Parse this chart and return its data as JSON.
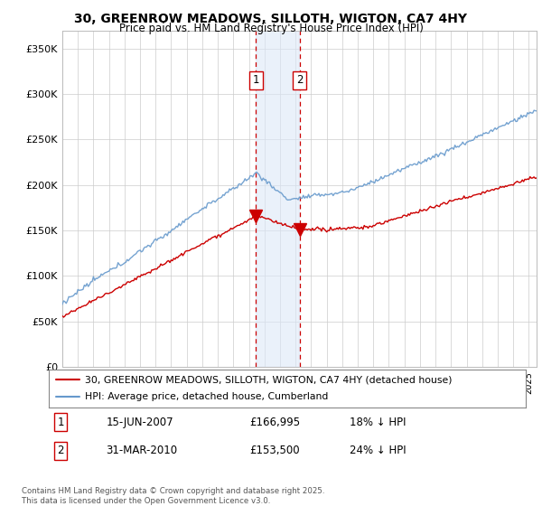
{
  "title_line1": "30, GREENROW MEADOWS, SILLOTH, WIGTON, CA7 4HY",
  "title_line2": "Price paid vs. HM Land Registry's House Price Index (HPI)",
  "yticks_labels": [
    "£0",
    "£50K",
    "£100K",
    "£150K",
    "£200K",
    "£250K",
    "£300K",
    "£350K"
  ],
  "yticks_values": [
    0,
    50000,
    100000,
    150000,
    200000,
    250000,
    300000,
    350000
  ],
  "ylim": [
    0,
    370000
  ],
  "xlim_start": 1995.0,
  "xlim_end": 2025.5,
  "sale1_date": 2007.45,
  "sale1_price": 166995,
  "sale1_label": "1",
  "sale2_date": 2010.25,
  "sale2_price": 153500,
  "sale2_label": "2",
  "shade_color": "#dce8f8",
  "shade_alpha": 0.6,
  "dashed_color": "#cc0000",
  "hpi_color": "#6699cc",
  "price_color": "#cc0000",
  "legend_entry1": "30, GREENROW MEADOWS, SILLOTH, WIGTON, CA7 4HY (detached house)",
  "legend_entry2": "HPI: Average price, detached house, Cumberland",
  "table_row1": [
    "1",
    "15-JUN-2007",
    "£166,995",
    "18% ↓ HPI"
  ],
  "table_row2": [
    "2",
    "31-MAR-2010",
    "£153,500",
    "24% ↓ HPI"
  ],
  "footnote": "Contains HM Land Registry data © Crown copyright and database right 2025.\nThis data is licensed under the Open Government Licence v3.0.",
  "background_color": "#ffffff",
  "grid_color": "#cccccc"
}
